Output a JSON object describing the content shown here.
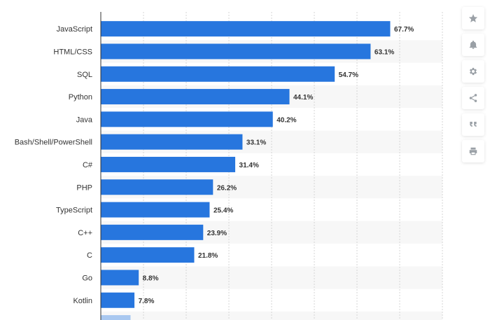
{
  "chart_data": {
    "type": "bar",
    "orientation": "horizontal",
    "categories": [
      "JavaScript",
      "HTML/CSS",
      "SQL",
      "Python",
      "Java",
      "Bash/Shell/PowerShell",
      "C#",
      "PHP",
      "TypeScript",
      "C++",
      "C",
      "Go",
      "Kotlin"
    ],
    "values": [
      67.7,
      63.1,
      54.7,
      44.1,
      40.2,
      33.1,
      31.4,
      26.2,
      25.4,
      23.9,
      21.8,
      8.8,
      7.8
    ],
    "value_labels": [
      "67.7%",
      "63.1%",
      "54.7%",
      "44.1%",
      "40.2%",
      "33.1%",
      "31.4%",
      "26.2%",
      "25.4%",
      "23.9%",
      "21.8%",
      "8.8%",
      "7.8%"
    ],
    "xlim": [
      0,
      80
    ],
    "grid": true,
    "bar_color": "#2776de",
    "partial_next_bar_color": "#a9c8f0"
  },
  "toolbar": {
    "icons": [
      "star-icon",
      "bell-icon",
      "gear-icon",
      "share-icon",
      "quote-icon",
      "print-icon"
    ],
    "icon_color": "#9aa0a6"
  }
}
